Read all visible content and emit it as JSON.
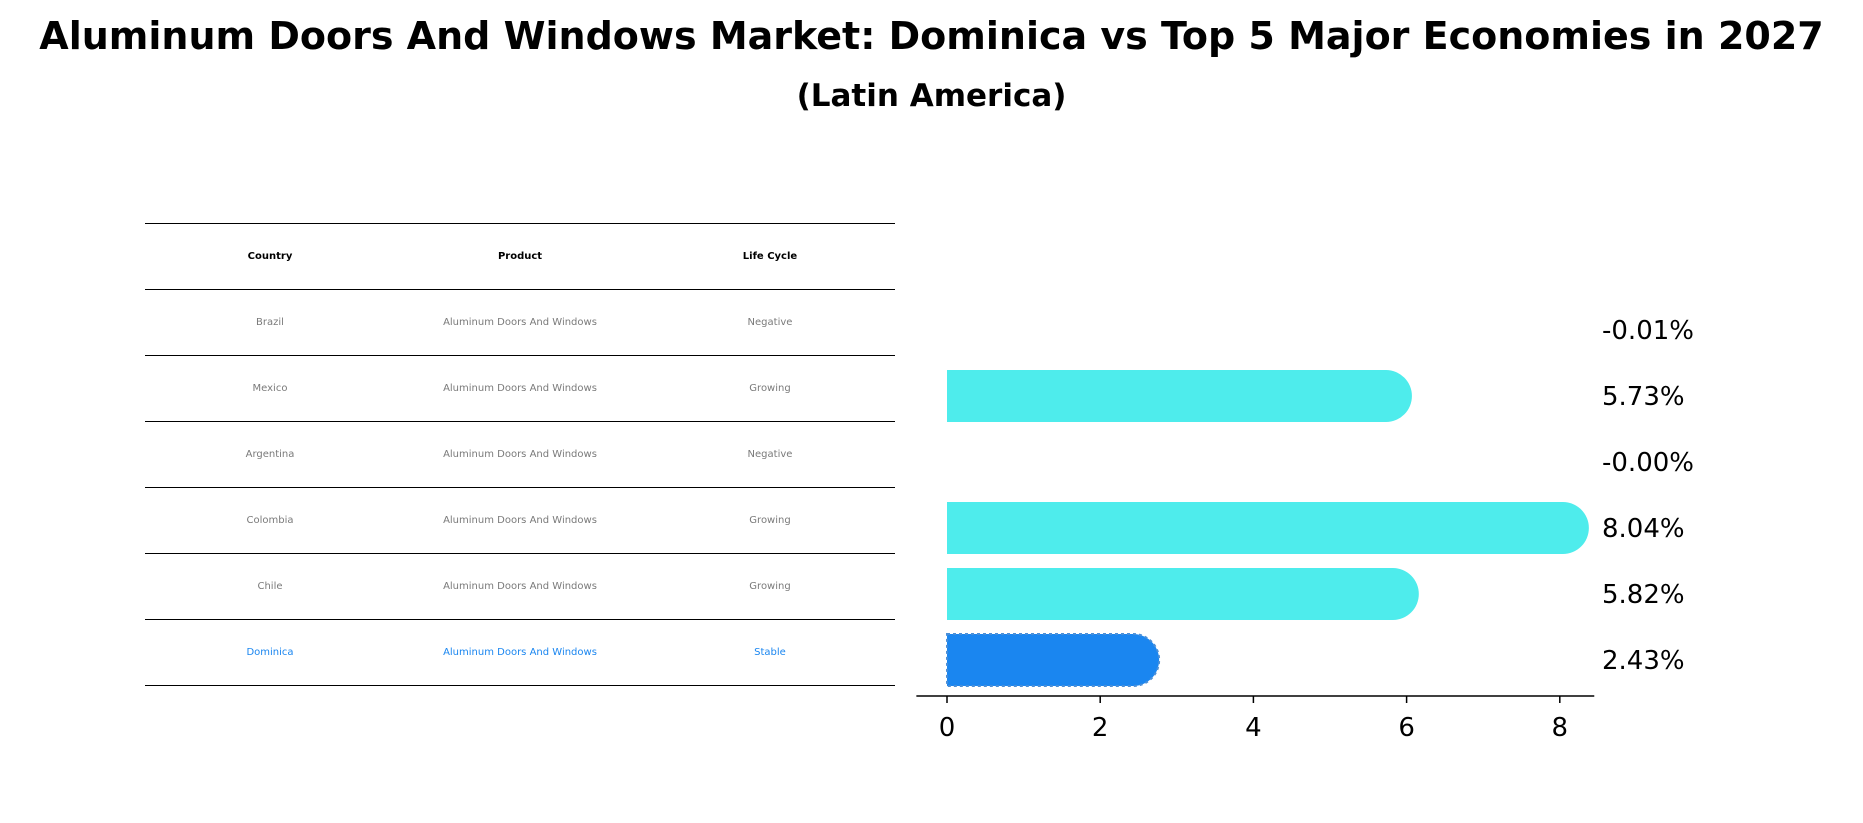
{
  "title": "Aluminum Doors And Windows Market: Dominica vs Top 5 Major Economies in 2027",
  "subtitle": "(Latin America)",
  "table": {
    "headers": [
      "Country",
      "Product",
      "Life Cycle"
    ],
    "rows": [
      [
        "Brazil",
        "Aluminum Doors And Windows",
        "Negative"
      ],
      [
        "Mexico",
        "Aluminum Doors And Windows",
        "Growing"
      ],
      [
        "Argentina",
        "Aluminum Doors And Windows",
        "Negative"
      ],
      [
        "Colombia",
        "Aluminum Doors And Windows",
        "Growing"
      ],
      [
        "Chile",
        "Aluminum Doors And Windows",
        "Growing"
      ],
      [
        "Dominica",
        "Aluminum Doors And Windows",
        "Stable"
      ]
    ],
    "highlight_row": 5
  },
  "chart_data": {
    "type": "bar",
    "orientation": "horizontal",
    "categories": [
      "Brazil",
      "Mexico",
      "Argentina",
      "Colombia",
      "Chile",
      "Dominica"
    ],
    "values": [
      -0.01,
      5.73,
      -0.0,
      8.04,
      5.82,
      2.43
    ],
    "value_labels": [
      "-0.01%",
      "5.73%",
      "-0.00%",
      "8.04%",
      "5.82%",
      "2.43%"
    ],
    "xticks": [
      0,
      2,
      4,
      6,
      8
    ],
    "xlim": [
      -0.4,
      8.45
    ],
    "colors": {
      "default": "#4eecec",
      "highlight": "#1a86f0"
    },
    "highlight_index": 5,
    "grid": false
  }
}
